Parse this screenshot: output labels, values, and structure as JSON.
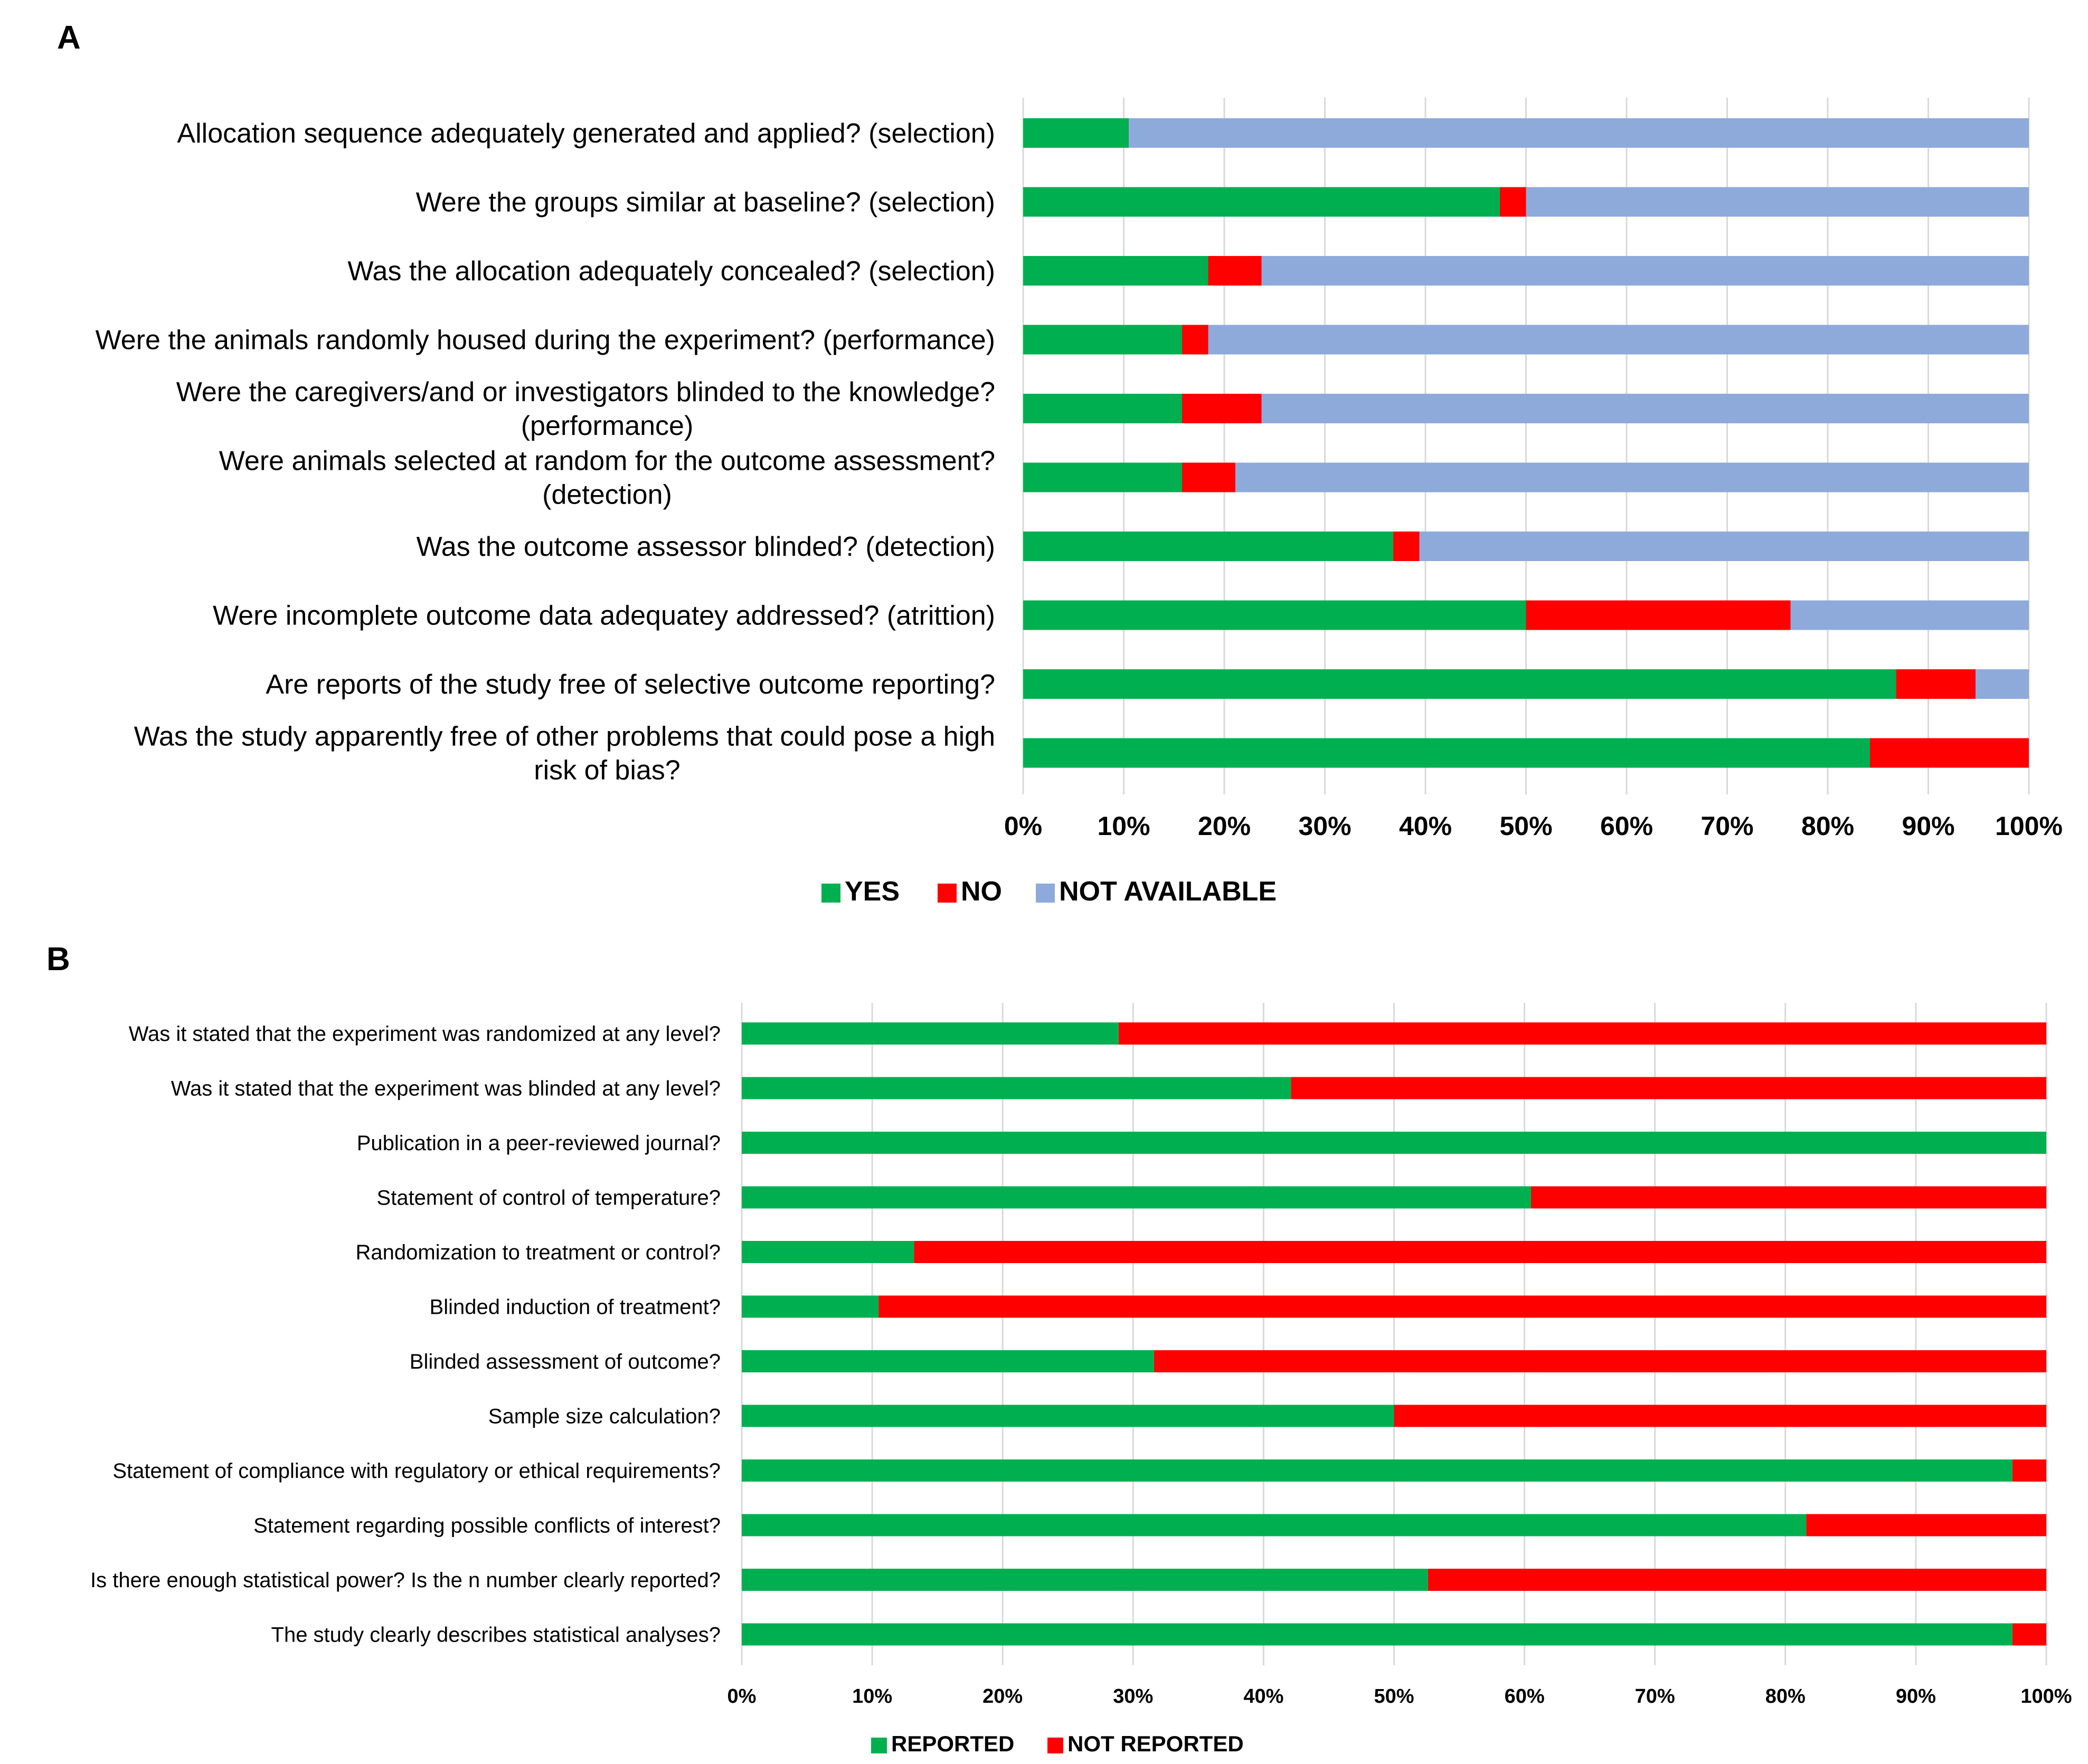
{
  "chart_data": [
    {
      "panel": "A",
      "type": "bar",
      "orientation": "horizontal",
      "stacked": "percent",
      "categories": [
        [
          "Allocation sequence adequately generated and applied? (selection)"
        ],
        [
          "Were the groups similar at baseline? (selection)"
        ],
        [
          "Was the allocation adequately concealed? (selection)"
        ],
        [
          "Were the animals randomly housed during the experiment? (performance)"
        ],
        [
          "Were the caregivers/and or investigators  blinded to the knowledge?",
          "(performance)"
        ],
        [
          "Were animals selected at random for the outcome assessment?",
          "(detection)"
        ],
        [
          "Was the outcome assessor blinded? (detection)"
        ],
        [
          "Were incomplete outcome data adequatey addressed? (atrittion)"
        ],
        [
          "Are reports of the study free of selective outcome reporting?"
        ],
        [
          "Was the study apparently free of other problems that could pose a high",
          "risk of bias?"
        ]
      ],
      "series": [
        {
          "name": "YES",
          "color": "#00b050",
          "values": [
            10.5,
            47.4,
            18.4,
            15.8,
            15.8,
            15.8,
            36.8,
            50.0,
            86.8,
            84.2
          ]
        },
        {
          "name": "NO",
          "color": "#ff0000",
          "values": [
            0,
            2.6,
            5.3,
            2.6,
            7.9,
            5.3,
            2.6,
            26.3,
            7.9,
            15.8
          ]
        },
        {
          "name": "NOT AVAILABLE",
          "color": "#8eaadb",
          "values": [
            89.5,
            50.0,
            76.3,
            81.6,
            76.3,
            78.9,
            60.6,
            23.7,
            5.3,
            0
          ]
        }
      ],
      "ticks": [
        "0%",
        "10%",
        "20%",
        "30%",
        "40%",
        "50%",
        "60%",
        "70%",
        "80%",
        "90%",
        "100%"
      ],
      "xlim": [
        0,
        100
      ],
      "legend": "bottom"
    },
    {
      "panel": "B",
      "type": "bar",
      "orientation": "horizontal",
      "stacked": "percent",
      "categories": [
        [
          "Was it stated that the experiment was randomized at any level?"
        ],
        [
          "Was it stated that the experiment was blinded at any level?"
        ],
        [
          "Publication in a peer-reviewed journal?"
        ],
        [
          "Statement of control of temperature?"
        ],
        [
          "Randomization to treatment or control?"
        ],
        [
          "Blinded induction of treatment?"
        ],
        [
          "Blinded assessment of outcome?"
        ],
        [
          "Sample size calculation?"
        ],
        [
          "Statement of compliance with regulatory or ethical requirements?"
        ],
        [
          "Statement regarding possible conflicts of interest?"
        ],
        [
          "Is there enough statistical power? Is the n number clearly reported?"
        ],
        [
          "The study clearly describes statistical analyses?"
        ]
      ],
      "series": [
        {
          "name": "REPORTED",
          "color": "#00b050",
          "values": [
            28.9,
            42.1,
            100,
            60.5,
            13.2,
            10.5,
            31.6,
            50.0,
            97.4,
            81.6,
            52.6,
            97.4
          ]
        },
        {
          "name": "NOT REPORTED",
          "color": "#ff0000",
          "values": [
            71.1,
            57.9,
            0,
            39.5,
            86.8,
            89.5,
            68.4,
            50.0,
            2.6,
            18.4,
            47.4,
            2.6
          ]
        }
      ],
      "ticks": [
        "0%",
        "10%",
        "20%",
        "30%",
        "40%",
        "50%",
        "60%",
        "70%",
        "80%",
        "90%",
        "100%"
      ],
      "xlim": [
        0,
        100
      ],
      "legend": "bottom"
    }
  ]
}
